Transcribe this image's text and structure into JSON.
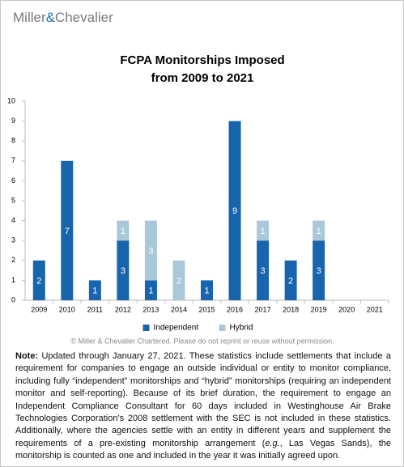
{
  "header": {
    "logo": [
      "Miller",
      "&",
      "Chevalier"
    ]
  },
  "chart_data": {
    "type": "stacked_bar",
    "title": [
      "FCPA Monitorships Imposed",
      "from 2009 to 2021"
    ],
    "categories": [
      "2009",
      "2010",
      "2011",
      "2012",
      "2013",
      "2014",
      "2015",
      "2016",
      "2017",
      "2018",
      "2019",
      "2020",
      "2021"
    ],
    "series": [
      {
        "name": "Independent",
        "color": "#1865ae",
        "values": [
          2,
          7,
          1,
          3,
          1,
          0,
          1,
          9,
          3,
          2,
          3,
          0,
          0
        ]
      },
      {
        "name": "Hybrid",
        "color": "#aac8d9",
        "values": [
          0,
          0,
          0,
          1,
          3,
          2,
          0,
          0,
          1,
          0,
          1,
          0,
          0
        ]
      }
    ],
    "ylim": [
      0,
      10
    ],
    "yticks": [
      0,
      1,
      2,
      3,
      4,
      5,
      6,
      7,
      8,
      9,
      10
    ],
    "grid": false,
    "legend": "bottom"
  },
  "copyright": "© Miller & Chevalier Chartered. Please do not reprint or reuse without permission.",
  "note": {
    "label": "Note:",
    "parts": [
      "Updated through January 27, 2021. These statistics include settlements that include a requirement for companies to engage an outside individual or entity to monitor compliance, including fully “independent” monitorships and “hybrid” monitorships (requiring an independent monitor and self-reporting). Because of its brief duration, the requirement to engage an Independent Compliance Consultant for 60 days included in Westinghouse Air Brake Technologies Corporation’s 2008 settlement with the SEC is not included in these statistics. Additionally, where the agencies settle with an entity in different years and supplement the requirements of a pre-existing monitorship arrangement (",
      "e.g.",
      ", Las Vegas Sands), the monitorship is counted as one and included in the year it was initially agreed upon."
    ]
  }
}
